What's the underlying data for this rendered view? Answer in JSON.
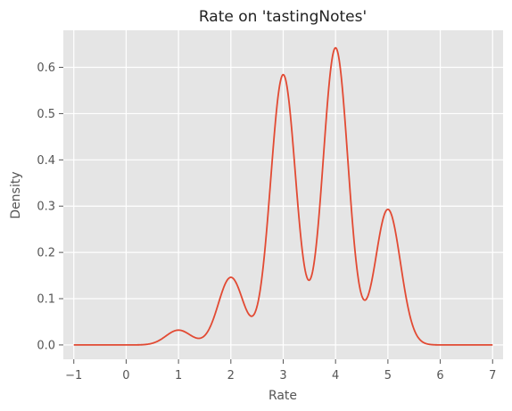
{
  "chart_data": {
    "type": "line",
    "title": "Rate on 'tastingNotes'",
    "xlabel": "Rate",
    "ylabel": "Density",
    "xlim": [
      -1.2,
      7.2
    ],
    "ylim": [
      -0.031,
      0.68
    ],
    "x_ticks": [
      -1,
      0,
      1,
      2,
      3,
      4,
      5,
      6,
      7
    ],
    "x_tick_labels": [
      "−1",
      "0",
      "1",
      "2",
      "3",
      "4",
      "5",
      "6",
      "7"
    ],
    "y_ticks": [
      0.0,
      0.1,
      0.2,
      0.3,
      0.4,
      0.5,
      0.6
    ],
    "y_tick_labels": [
      "0.0",
      "0.1",
      "0.2",
      "0.3",
      "0.4",
      "0.5",
      "0.6"
    ],
    "grid": true,
    "colors": {
      "background": "#e5e5e5",
      "grid": "#ffffff",
      "line": "#e24a33"
    },
    "series": [
      {
        "components": [
          {
            "center": 1,
            "peak": 0.032
          },
          {
            "center": 2,
            "peak": 0.146
          },
          {
            "center": 3,
            "peak": 0.584
          },
          {
            "center": 4,
            "peak": 0.642
          },
          {
            "center": 5,
            "peak": 0.293
          }
        ],
        "x_range": [
          -1,
          7
        ]
      }
    ]
  }
}
